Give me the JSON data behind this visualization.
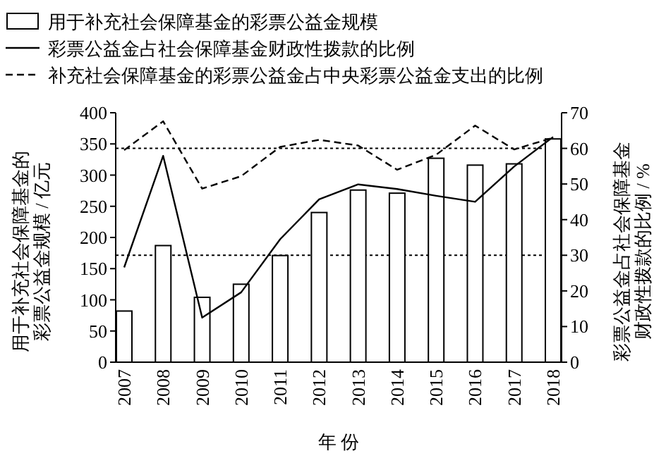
{
  "chart_data": {
    "type": "bar",
    "xlabel": "年 份",
    "ylabel": "用于补充社会保障基金的彩票公益金规模 / 亿元",
    "y2label": "彩票公益金占社会保障基金财政性拨款的比例 / %",
    "categories": [
      "2007",
      "2008",
      "2009",
      "2010",
      "2011",
      "2012",
      "2013",
      "2014",
      "2015",
      "2016",
      "2017",
      "2018"
    ],
    "series": [
      {
        "name": "用于补充社会保障基金的彩票公益金规模",
        "color": "#ffffff",
        "values": [
          82,
          187,
          104,
          125,
          171,
          240,
          276,
          271,
          327,
          316,
          318,
          358
        ]
      },
      {
        "name": "彩票公益金占社会保障基金财政性拨款的比例",
        "type": "line",
        "axis": "y2",
        "color": "#000000",
        "line_style": "solid",
        "values": [
          26.6,
          57.9,
          12.5,
          19.6,
          34.5,
          45.7,
          49.9,
          48.6,
          46.7,
          45.0,
          54.9,
          63.2
        ]
      },
      {
        "name": "补充社会保障基金的彩票公益金占中央彩票公益金支出的比例",
        "type": "line",
        "axis": "y2",
        "color": "#000000",
        "line_style": "dashed",
        "values": [
          59.5,
          67.6,
          48.7,
          52.2,
          60.4,
          62.4,
          60.8,
          54.0,
          58.2,
          66.4,
          59.7,
          63.0
        ]
      }
    ],
    "ylim": [
      0,
      400
    ],
    "yticks": [
      0,
      50,
      100,
      150,
      200,
      250,
      300,
      350,
      400
    ],
    "y2lim": [
      0,
      70
    ],
    "y2ticks": [
      0,
      10,
      20,
      30,
      40,
      50,
      60,
      70
    ],
    "ref_lines": [
      {
        "axis": "y2",
        "value": 60,
        "line_style": "dotted"
      },
      {
        "axis": "y2",
        "value": 30,
        "line_style": "dotted"
      }
    ],
    "legend": "top left",
    "grid": false,
    "marker": "none"
  }
}
